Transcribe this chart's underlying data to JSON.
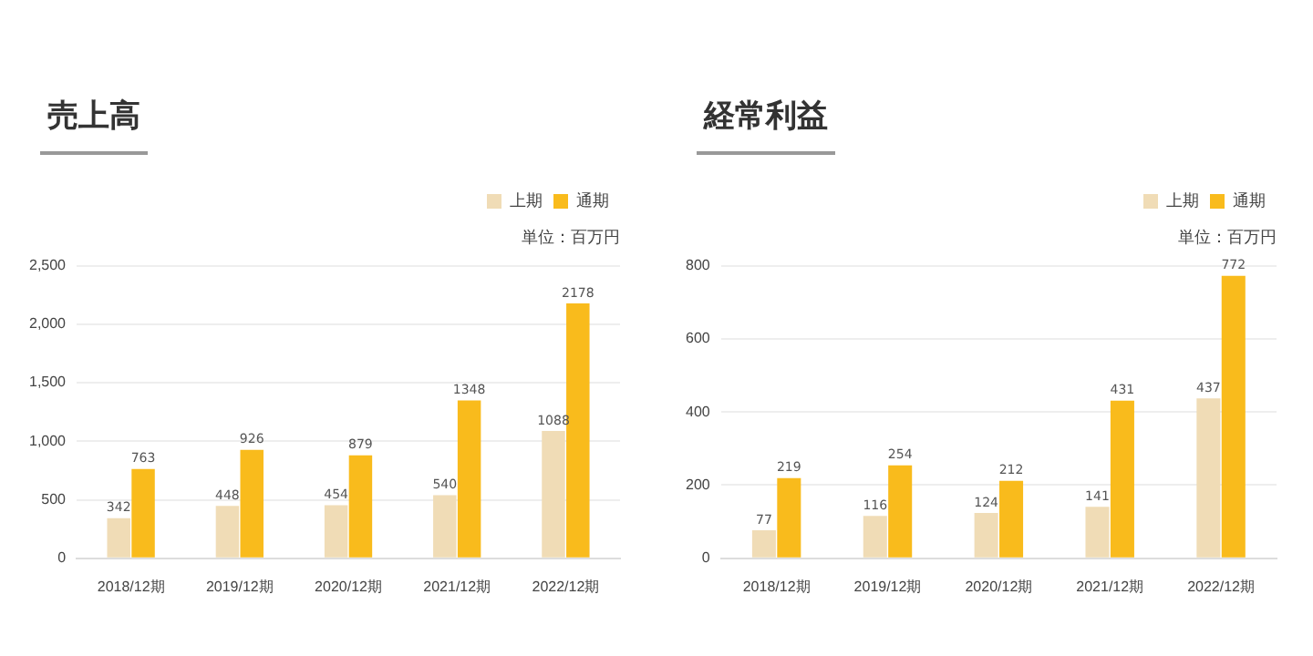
{
  "chart_data": [
    {
      "type": "bar",
      "title": "売上高",
      "categories": [
        "2018/12期",
        "2019/12期",
        "2020/12期",
        "2021/12期",
        "2022/12期"
      ],
      "series": [
        {
          "name": "上期",
          "color": "#f0dcb6",
          "values": [
            342,
            448,
            454,
            540,
            1088
          ]
        },
        {
          "name": "通期",
          "color": "#f9bb1c",
          "values": [
            763,
            926,
            879,
            1348,
            2178
          ]
        }
      ],
      "ylim": [
        0,
        2500
      ],
      "yticks": [
        {
          "value": 0,
          "label": "0"
        },
        {
          "value": 500,
          "label": "500"
        },
        {
          "value": 1000,
          "label": "1,000"
        },
        {
          "value": 1500,
          "label": "1,500"
        },
        {
          "value": 2000,
          "label": "2,000"
        },
        {
          "value": 2500,
          "label": "2,500"
        }
      ],
      "grid": "y",
      "legend": "top right",
      "data_labels": true,
      "annotations": [
        "単位：百万円"
      ]
    },
    {
      "type": "bar",
      "title": "経常利益",
      "categories": [
        "2018/12期",
        "2019/12期",
        "2020/12期",
        "2021/12期",
        "2022/12期"
      ],
      "series": [
        {
          "name": "上期",
          "color": "#f0dcb6",
          "values": [
            77,
            116,
            124,
            141,
            437
          ]
        },
        {
          "name": "通期",
          "color": "#f9bb1c",
          "values": [
            219,
            254,
            212,
            431,
            772
          ]
        }
      ],
      "ylim": [
        0,
        800
      ],
      "yticks": [
        0,
        200,
        400,
        600,
        800
      ],
      "grid": "y",
      "legend": "top right",
      "data_labels": true,
      "annotations": [
        "単位：百万円"
      ]
    }
  ]
}
